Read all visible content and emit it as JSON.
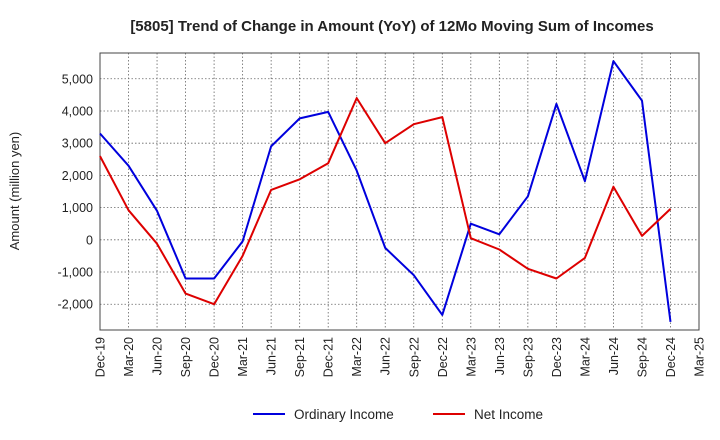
{
  "chart_data": {
    "type": "line",
    "title": "[5805]  Trend of Change in Amount (YoY) of 12Mo Moving Sum of Incomes",
    "xlabel": "",
    "ylabel": "Amount (million yen)",
    "categories": [
      "Dec-19",
      "Mar-20",
      "Jun-20",
      "Sep-20",
      "Dec-20",
      "Mar-21",
      "Jun-21",
      "Sep-21",
      "Dec-21",
      "Mar-22",
      "Jun-22",
      "Sep-22",
      "Dec-22",
      "Mar-23",
      "Jun-23",
      "Sep-23",
      "Dec-23",
      "Mar-24",
      "Jun-24",
      "Sep-24",
      "Dec-24",
      "Mar-25"
    ],
    "ylim": [
      -2800,
      5800
    ],
    "yticks": [
      -2000,
      -1000,
      0,
      1000,
      2000,
      3000,
      4000,
      5000
    ],
    "ytick_labels": [
      "-2,000",
      "-1,000",
      "0",
      "1,000",
      "2,000",
      "3,000",
      "4,000",
      "5,000"
    ],
    "grid": true,
    "legend_position": "bottom",
    "series": [
      {
        "name": "Ordinary Income",
        "color": "#0000dd",
        "values": [
          3300,
          2300,
          900,
          -1200,
          -1200,
          -50,
          2900,
          3770,
          3970,
          2150,
          -250,
          -1100,
          -2330,
          500,
          170,
          1350,
          4220,
          1820,
          5550,
          4320,
          -2550,
          null
        ]
      },
      {
        "name": "Net Income",
        "color": "#dd0000",
        "values": [
          2600,
          920,
          -120,
          -1670,
          -2000,
          -500,
          1550,
          1880,
          2380,
          4400,
          3000,
          3590,
          3810,
          50,
          -300,
          -900,
          -1200,
          -560,
          1650,
          120,
          960,
          null
        ]
      }
    ]
  }
}
